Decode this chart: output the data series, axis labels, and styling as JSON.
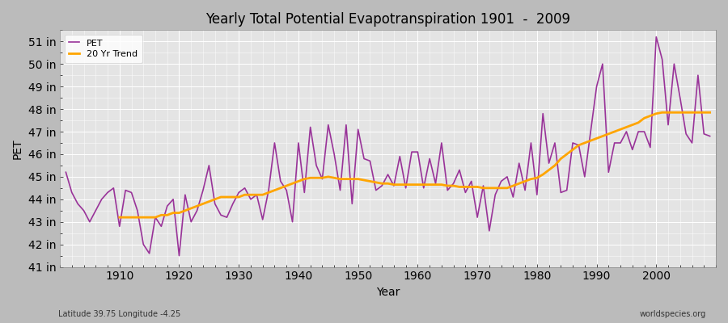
{
  "title": "Yearly Total Potential Evapotranspiration 1901  -  2009",
  "xlabel": "Year",
  "ylabel": "PET",
  "footnote_left": "Latitude 39.75 Longitude -4.25",
  "footnote_right": "worldspecies.org",
  "pet_color": "#993399",
  "trend_color": "#FFA500",
  "fig_bg_color": "#CCCCCC",
  "plot_bg_color": "#E8E8E8",
  "ylim": [
    41,
    51.5
  ],
  "yticks": [
    41,
    42,
    43,
    44,
    45,
    46,
    47,
    48,
    49,
    50,
    51
  ],
  "xlim": [
    1900,
    2010
  ],
  "xticks": [
    1910,
    1920,
    1930,
    1940,
    1950,
    1960,
    1970,
    1980,
    1990,
    2000
  ],
  "years": [
    1901,
    1902,
    1903,
    1904,
    1905,
    1906,
    1907,
    1908,
    1909,
    1910,
    1911,
    1912,
    1913,
    1914,
    1915,
    1916,
    1917,
    1918,
    1919,
    1920,
    1921,
    1922,
    1923,
    1924,
    1925,
    1926,
    1927,
    1928,
    1929,
    1930,
    1931,
    1932,
    1933,
    1934,
    1935,
    1936,
    1937,
    1938,
    1939,
    1940,
    1941,
    1942,
    1943,
    1944,
    1945,
    1946,
    1947,
    1948,
    1949,
    1950,
    1951,
    1952,
    1953,
    1954,
    1955,
    1956,
    1957,
    1958,
    1959,
    1960,
    1961,
    1962,
    1963,
    1964,
    1965,
    1966,
    1967,
    1968,
    1969,
    1970,
    1971,
    1972,
    1973,
    1974,
    1975,
    1976,
    1977,
    1978,
    1979,
    1980,
    1981,
    1982,
    1983,
    1984,
    1985,
    1986,
    1987,
    1988,
    1989,
    1990,
    1991,
    1992,
    1993,
    1994,
    1995,
    1996,
    1997,
    1998,
    1999,
    2000,
    2001,
    2002,
    2003,
    2004,
    2005,
    2006,
    2007,
    2008,
    2009
  ],
  "pet_values": [
    45.2,
    44.3,
    43.8,
    43.5,
    43.0,
    43.5,
    44.0,
    44.3,
    44.5,
    42.8,
    44.4,
    44.3,
    43.5,
    42.0,
    41.6,
    43.2,
    42.8,
    43.7,
    44.0,
    41.5,
    44.2,
    43.0,
    43.5,
    44.4,
    45.5,
    43.8,
    43.3,
    43.2,
    43.8,
    44.3,
    44.5,
    44.0,
    44.2,
    43.1,
    44.4,
    46.5,
    44.8,
    44.4,
    43.0,
    46.5,
    44.3,
    47.2,
    45.5,
    44.9,
    47.3,
    46.0,
    44.4,
    47.3,
    43.8,
    47.1,
    45.8,
    45.7,
    44.4,
    44.6,
    45.1,
    44.6,
    45.9,
    44.5,
    46.1,
    46.1,
    44.5,
    45.8,
    44.7,
    46.5,
    44.4,
    44.7,
    45.3,
    44.3,
    44.8,
    43.2,
    44.6,
    42.6,
    44.2,
    44.8,
    45.0,
    44.1,
    45.6,
    44.4,
    46.5,
    44.2,
    47.8,
    45.6,
    46.5,
    44.3,
    44.4,
    46.5,
    46.4,
    45.0,
    47.0,
    49.0,
    50.0,
    45.2,
    46.5,
    46.5,
    47.0,
    46.2,
    47.0,
    47.0,
    46.3,
    51.2,
    50.2,
    47.3,
    50.0,
    48.5,
    46.9,
    46.5,
    49.5,
    46.9,
    46.8
  ],
  "trend_years": [
    1910,
    1911,
    1912,
    1913,
    1914,
    1915,
    1916,
    1917,
    1918,
    1919,
    1920,
    1921,
    1922,
    1923,
    1924,
    1925,
    1926,
    1927,
    1928,
    1929,
    1930,
    1931,
    1932,
    1933,
    1934,
    1935,
    1936,
    1937,
    1938,
    1939,
    1940,
    1941,
    1942,
    1943,
    1944,
    1945,
    1946,
    1947,
    1948,
    1949,
    1950,
    1951,
    1952,
    1953,
    1954,
    1955,
    1956,
    1957,
    1958,
    1959,
    1960,
    1961,
    1962,
    1963,
    1964,
    1965,
    1966,
    1967,
    1968,
    1969,
    1970,
    1971,
    1972,
    1973,
    1974,
    1975,
    1976,
    1977,
    1978,
    1979,
    1980,
    1981,
    1982,
    1983,
    1984,
    1985,
    1986,
    1987,
    1988,
    1989,
    1990,
    1991,
    1992,
    1993,
    1994,
    1995,
    1996,
    1997,
    1998,
    1999,
    2000,
    2001,
    2002,
    2003,
    2004,
    2005,
    2006,
    2007,
    2008,
    2009
  ],
  "trend_values": [
    43.2,
    43.2,
    43.2,
    43.2,
    43.2,
    43.2,
    43.2,
    43.3,
    43.3,
    43.4,
    43.4,
    43.5,
    43.6,
    43.7,
    43.8,
    43.9,
    44.0,
    44.1,
    44.1,
    44.1,
    44.1,
    44.2,
    44.2,
    44.2,
    44.2,
    44.3,
    44.4,
    44.5,
    44.6,
    44.7,
    44.8,
    44.9,
    44.95,
    44.95,
    44.95,
    45.0,
    44.95,
    44.9,
    44.9,
    44.9,
    44.9,
    44.85,
    44.8,
    44.75,
    44.7,
    44.7,
    44.65,
    44.65,
    44.65,
    44.65,
    44.65,
    44.65,
    44.65,
    44.65,
    44.65,
    44.6,
    44.6,
    44.55,
    44.55,
    44.55,
    44.55,
    44.5,
    44.5,
    44.5,
    44.5,
    44.5,
    44.6,
    44.7,
    44.8,
    44.9,
    44.95,
    45.1,
    45.3,
    45.5,
    45.8,
    46.0,
    46.2,
    46.4,
    46.5,
    46.6,
    46.7,
    46.8,
    46.9,
    47.0,
    47.1,
    47.2,
    47.3,
    47.4,
    47.6,
    47.7,
    47.8,
    47.85,
    47.85,
    47.85,
    47.85,
    47.85,
    47.85,
    47.85,
    47.85,
    47.85
  ]
}
